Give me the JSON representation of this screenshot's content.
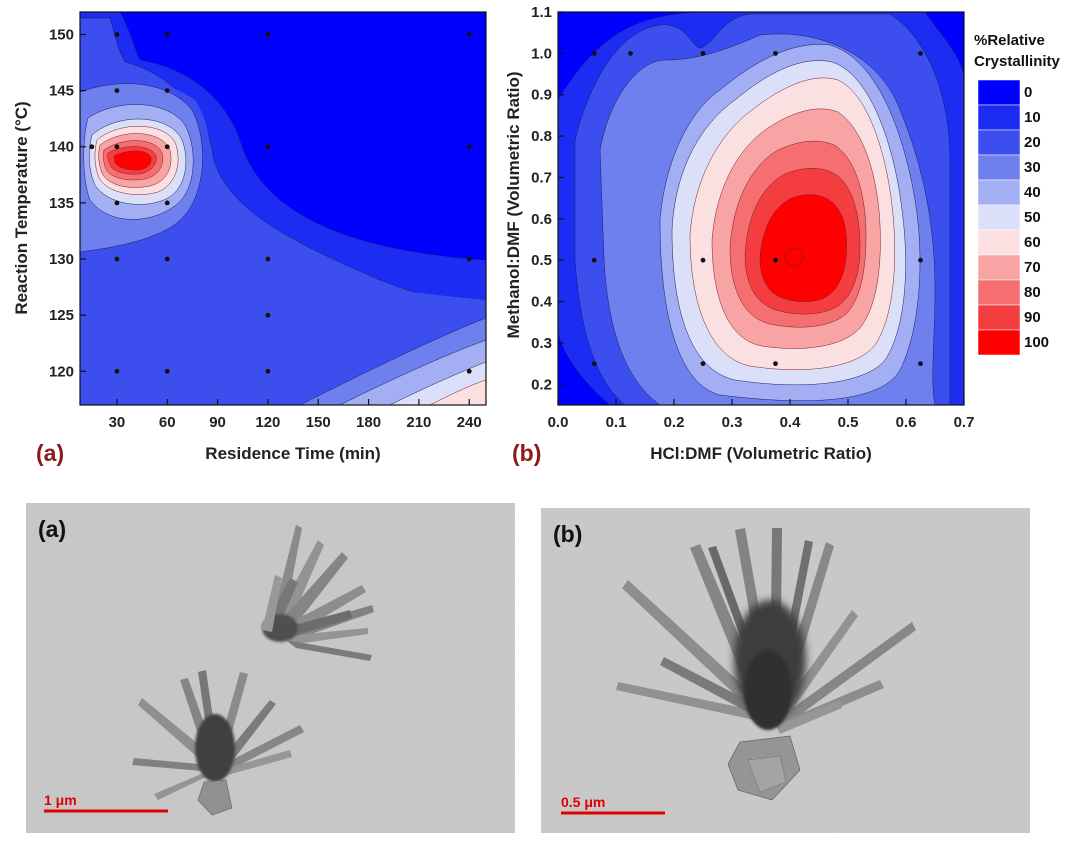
{
  "colors": {
    "levels": [
      "#0000ff",
      "#1c2cf2",
      "#3d4eee",
      "#6e7fee",
      "#a3aef3",
      "#dcdff8",
      "#fbe0e1",
      "#f8a3a4",
      "#f66f70",
      "#f43d3e",
      "#ff0000"
    ],
    "panel_letter": "#8b1a1a",
    "scale_bar": "#e00000",
    "tem_background": "#c8c8c8"
  },
  "chart_data": [
    {
      "type": "contour",
      "panel_label": "(a)",
      "xlabel": "Residence Time (min)",
      "ylabel": "Reaction Temperature (°C)",
      "xlim": [
        8,
        250
      ],
      "ylim": [
        117,
        152
      ],
      "xticks": [
        30,
        60,
        90,
        120,
        150,
        180,
        210,
        240
      ],
      "yticks": [
        120,
        125,
        130,
        135,
        140,
        145,
        150
      ],
      "grid": false,
      "sample_points": [
        [
          30,
          150
        ],
        [
          60,
          150
        ],
        [
          120,
          150
        ],
        [
          240,
          150
        ],
        [
          30,
          145
        ],
        [
          60,
          145
        ],
        [
          15,
          140
        ],
        [
          30,
          140
        ],
        [
          60,
          140
        ],
        [
          120,
          140
        ],
        [
          240,
          140
        ],
        [
          30,
          135
        ],
        [
          60,
          135
        ],
        [
          30,
          130
        ],
        [
          60,
          130
        ],
        [
          120,
          130
        ],
        [
          240,
          130
        ],
        [
          120,
          125
        ],
        [
          30,
          120
        ],
        [
          60,
          120
        ],
        [
          120,
          120
        ],
        [
          240,
          120
        ]
      ],
      "peak": {
        "x": 50,
        "y": 139.7,
        "value": 100
      },
      "secondary_feature": {
        "x": 250,
        "y": 117,
        "value": 60
      }
    },
    {
      "type": "contour",
      "panel_label": "(b)",
      "xlabel": "HCl:DMF (Volumetric Ratio)",
      "ylabel": "Methanol:DMF (Volumetric Ratio)",
      "xlim": [
        0,
        0.7
      ],
      "ylim": [
        0.15,
        1.1
      ],
      "xticks": [
        "0.0",
        "0.1",
        "0.2",
        "0.3",
        "0.4",
        "0.5",
        "0.6",
        "0.7"
      ],
      "yticks": [
        "0.2",
        "0.3",
        "0.4",
        "0.5",
        "0.6",
        "0.7",
        "0.8",
        "0.9",
        "1.0",
        "1.1"
      ],
      "grid": false,
      "sample_points": [
        [
          0.0625,
          1.0
        ],
        [
          0.125,
          1.0
        ],
        [
          0.25,
          1.0
        ],
        [
          0.375,
          1.0
        ],
        [
          0.625,
          1.0
        ],
        [
          0.0625,
          0.5
        ],
        [
          0.25,
          0.5
        ],
        [
          0.375,
          0.5
        ],
        [
          0.625,
          0.5
        ],
        [
          0.0625,
          0.25
        ],
        [
          0.25,
          0.25
        ],
        [
          0.375,
          0.25
        ],
        [
          0.625,
          0.25
        ]
      ],
      "peak": {
        "x": 0.41,
        "y": 0.5,
        "value": 100
      }
    }
  ],
  "legend": {
    "title_line1": "%Relative",
    "title_line2": "Crystallinity",
    "levels": [
      "0",
      "10",
      "20",
      "30",
      "40",
      "50",
      "60",
      "70",
      "80",
      "90",
      "100"
    ]
  },
  "tem_images": [
    {
      "label": "(a)",
      "scale_bar": "1 μm"
    },
    {
      "label": "(b)",
      "scale_bar": "0.5 μm"
    }
  ]
}
